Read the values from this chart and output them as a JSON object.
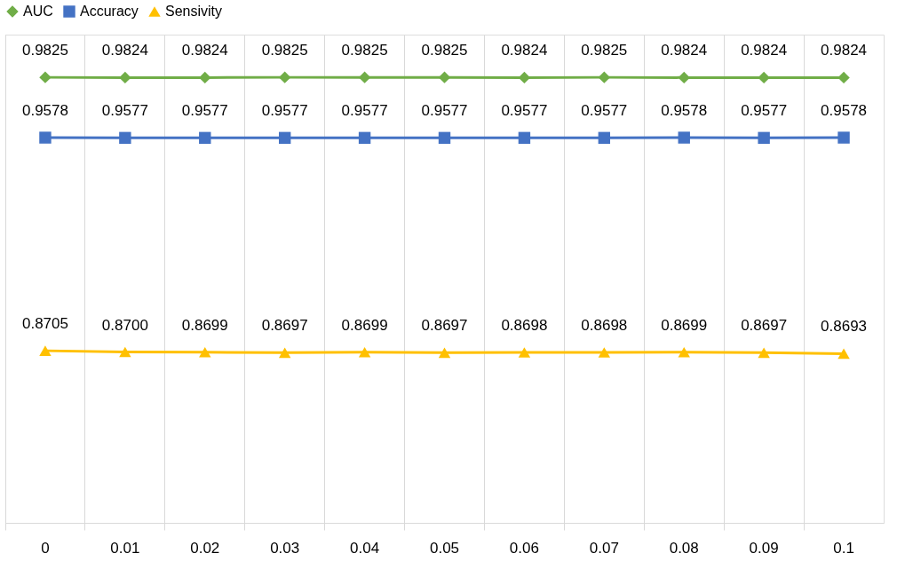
{
  "chart_data": {
    "type": "line",
    "categories": [
      "0",
      "0.01",
      "0.02",
      "0.03",
      "0.04",
      "0.05",
      "0.06",
      "0.07",
      "0.08",
      "0.09",
      "0.1"
    ],
    "series": [
      {
        "name": "AUC",
        "color": "#70ad47",
        "marker": "diamond",
        "values": [
          0.9825,
          0.9824,
          0.9824,
          0.9825,
          0.9825,
          0.9825,
          0.9824,
          0.9825,
          0.9824,
          0.9824,
          0.9824
        ],
        "value_labels": [
          "0.9825",
          "0.9824",
          "0.9824",
          "0.9825",
          "0.9825",
          "0.9825",
          "0.9824",
          "0.9825",
          "0.9824",
          "0.9824",
          "0.9824"
        ]
      },
      {
        "name": "Accuracy",
        "color": "#4472c4",
        "marker": "square",
        "values": [
          0.9578,
          0.9577,
          0.9577,
          0.9577,
          0.9577,
          0.9577,
          0.9577,
          0.9577,
          0.9578,
          0.9577,
          0.9578
        ],
        "value_labels": [
          "0.9578",
          "0.9577",
          "0.9577",
          "0.9577",
          "0.9577",
          "0.9577",
          "0.9577",
          "0.9577",
          "0.9578",
          "0.9577",
          "0.9578"
        ]
      },
      {
        "name": "Sensivity",
        "color": "#ffc000",
        "marker": "triangle",
        "values": [
          0.8705,
          0.87,
          0.8699,
          0.8697,
          0.8699,
          0.8697,
          0.8698,
          0.8698,
          0.8699,
          0.8697,
          0.8693
        ],
        "value_labels": [
          "0.8705",
          "0.8700",
          "0.8699",
          "0.8697",
          "0.8699",
          "0.8697",
          "0.8698",
          "0.8698",
          "0.8699",
          "0.8697",
          "0.8693"
        ]
      }
    ],
    "ylim": [
      0.8,
      1.0
    ],
    "tick_labels": "x",
    "grid": "x",
    "legend": "top",
    "line_style": "solid"
  }
}
